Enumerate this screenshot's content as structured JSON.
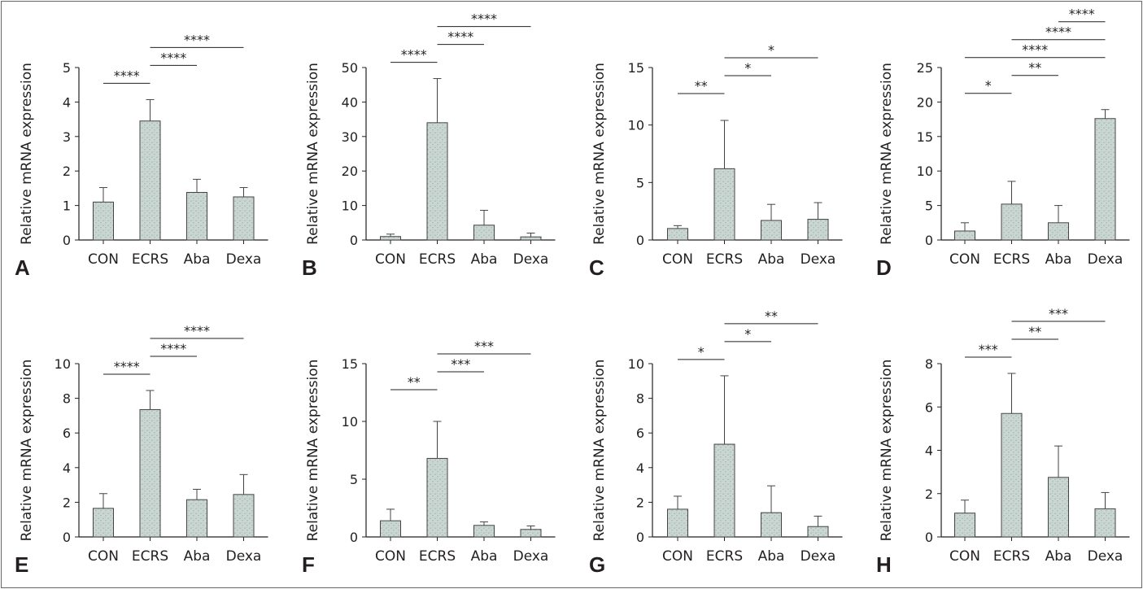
{
  "figure": {
    "style": {
      "bar_fill": "#c9d6d1",
      "bar_stroke": "#444444",
      "speckle": "#7c958c",
      "axis_color": "#231f20",
      "frame_color": "#666666"
    }
  },
  "chart_data": [
    {
      "panel": "A",
      "type": "bar",
      "categories": [
        "CON",
        "ECRS",
        "Aba",
        "Dexa"
      ],
      "values": [
        1.1,
        3.45,
        1.38,
        1.25
      ],
      "errors": [
        0.42,
        0.62,
        0.38,
        0.27
      ],
      "ylabel": "Relative mRNA expression",
      "ylim": [
        0,
        5
      ],
      "yticks": [
        0,
        1,
        2,
        3,
        4,
        5
      ],
      "ytick_labels": [
        "0",
        "1",
        "2",
        "3",
        "4",
        "5"
      ],
      "comparisons": [
        {
          "from": 0,
          "to": 1,
          "label": "****"
        },
        {
          "from": 1,
          "to": 2,
          "label": "****"
        },
        {
          "from": 1,
          "to": 3,
          "label": "****"
        }
      ]
    },
    {
      "panel": "B",
      "type": "bar",
      "categories": [
        "CON",
        "ECRS",
        "Aba",
        "Dexa"
      ],
      "values": [
        1.0,
        34.0,
        4.3,
        0.9
      ],
      "errors": [
        0.7,
        12.8,
        4.3,
        1.1
      ],
      "ylabel": "Relative mRNA expression",
      "ylim": [
        0,
        50
      ],
      "yticks": [
        0,
        10,
        20,
        30,
        40,
        50
      ],
      "ytick_labels": [
        "0",
        "10",
        "20",
        "30",
        "40",
        "50"
      ],
      "comparisons": [
        {
          "from": 0,
          "to": 1,
          "label": "****"
        },
        {
          "from": 1,
          "to": 2,
          "label": "****"
        },
        {
          "from": 1,
          "to": 3,
          "label": "****"
        }
      ]
    },
    {
      "panel": "C",
      "type": "bar",
      "categories": [
        "CON",
        "ECRS",
        "Aba",
        "Dexa"
      ],
      "values": [
        1.0,
        6.2,
        1.7,
        1.8
      ],
      "errors": [
        0.25,
        4.2,
        1.4,
        1.45
      ],
      "ylabel": "Relative mRNA expression",
      "ylim": [
        0,
        15
      ],
      "yticks": [
        0,
        5,
        10,
        15
      ],
      "ytick_labels": [
        "0",
        "5",
        "10",
        "15"
      ],
      "comparisons": [
        {
          "from": 0,
          "to": 1,
          "label": "**"
        },
        {
          "from": 1,
          "to": 2,
          "label": "*"
        },
        {
          "from": 1,
          "to": 3,
          "label": "*"
        }
      ]
    },
    {
      "panel": "D",
      "type": "bar",
      "categories": [
        "CON",
        "ECRS",
        "Aba",
        "Dexa"
      ],
      "values": [
        1.3,
        5.2,
        2.5,
        17.6
      ],
      "errors": [
        1.2,
        3.3,
        2.5,
        1.3
      ],
      "ylabel": "Relative mRNA expression",
      "ylim": [
        0,
        25
      ],
      "yticks": [
        0,
        5,
        10,
        15,
        20,
        25
      ],
      "ytick_labels": [
        "0",
        "5",
        "10",
        "15",
        "20",
        "25"
      ],
      "comparisons": [
        {
          "from": 0,
          "to": 1,
          "label": "*"
        },
        {
          "from": 1,
          "to": 2,
          "label": "**"
        },
        {
          "from": 0,
          "to": 3,
          "label": "****"
        },
        {
          "from": 1,
          "to": 3,
          "label": "****"
        },
        {
          "from": 2,
          "to": 3,
          "label": "****"
        }
      ]
    },
    {
      "panel": "E",
      "type": "bar",
      "categories": [
        "CON",
        "ECRS",
        "Aba",
        "Dexa"
      ],
      "values": [
        1.65,
        7.35,
        2.15,
        2.45
      ],
      "errors": [
        0.85,
        1.1,
        0.6,
        1.15
      ],
      "ylabel": "Relative mRNA expression",
      "ylim": [
        0,
        10
      ],
      "yticks": [
        0,
        2,
        4,
        6,
        8,
        10
      ],
      "ytick_labels": [
        "0",
        "2",
        "4",
        "6",
        "8",
        "10"
      ],
      "comparisons": [
        {
          "from": 0,
          "to": 1,
          "label": "****"
        },
        {
          "from": 1,
          "to": 2,
          "label": "****"
        },
        {
          "from": 1,
          "to": 3,
          "label": "****"
        }
      ]
    },
    {
      "panel": "F",
      "type": "bar",
      "categories": [
        "CON",
        "ECRS",
        "Aba",
        "Dexa"
      ],
      "values": [
        1.4,
        6.8,
        1.0,
        0.65
      ],
      "errors": [
        1.0,
        3.2,
        0.3,
        0.3
      ],
      "ylabel": "Relative mRNA expression",
      "ylim": [
        0,
        15
      ],
      "yticks": [
        0,
        5,
        10,
        15
      ],
      "ytick_labels": [
        "0",
        "5",
        "10",
        "15"
      ],
      "comparisons": [
        {
          "from": 0,
          "to": 1,
          "label": "**"
        },
        {
          "from": 1,
          "to": 2,
          "label": "***"
        },
        {
          "from": 1,
          "to": 3,
          "label": "***"
        }
      ]
    },
    {
      "panel": "G",
      "type": "bar",
      "categories": [
        "CON",
        "ECRS",
        "Aba",
        "Dexa"
      ],
      "values": [
        1.6,
        5.35,
        1.4,
        0.6
      ],
      "errors": [
        0.75,
        3.95,
        1.55,
        0.6
      ],
      "ylabel": "Relative mRNA expression",
      "ylim": [
        0,
        10
      ],
      "yticks": [
        0,
        2,
        4,
        6,
        8,
        10
      ],
      "ytick_labels": [
        "0",
        "2",
        "4",
        "6",
        "8",
        "10"
      ],
      "comparisons": [
        {
          "from": 0,
          "to": 1,
          "label": "*"
        },
        {
          "from": 1,
          "to": 2,
          "label": "*"
        },
        {
          "from": 1,
          "to": 3,
          "label": "**"
        }
      ]
    },
    {
      "panel": "H",
      "type": "bar",
      "categories": [
        "CON",
        "ECRS",
        "Aba",
        "Dexa"
      ],
      "values": [
        1.1,
        5.7,
        2.75,
        1.3
      ],
      "errors": [
        0.6,
        1.85,
        1.45,
        0.75
      ],
      "ylabel": "Relative mRNA expression",
      "ylim": [
        0,
        8
      ],
      "yticks": [
        0,
        2,
        4,
        6,
        8
      ],
      "ytick_labels": [
        "0",
        "2",
        "4",
        "6",
        "8"
      ],
      "comparisons": [
        {
          "from": 0,
          "to": 1,
          "label": "***"
        },
        {
          "from": 1,
          "to": 2,
          "label": "**"
        },
        {
          "from": 1,
          "to": 3,
          "label": "***"
        }
      ]
    }
  ]
}
